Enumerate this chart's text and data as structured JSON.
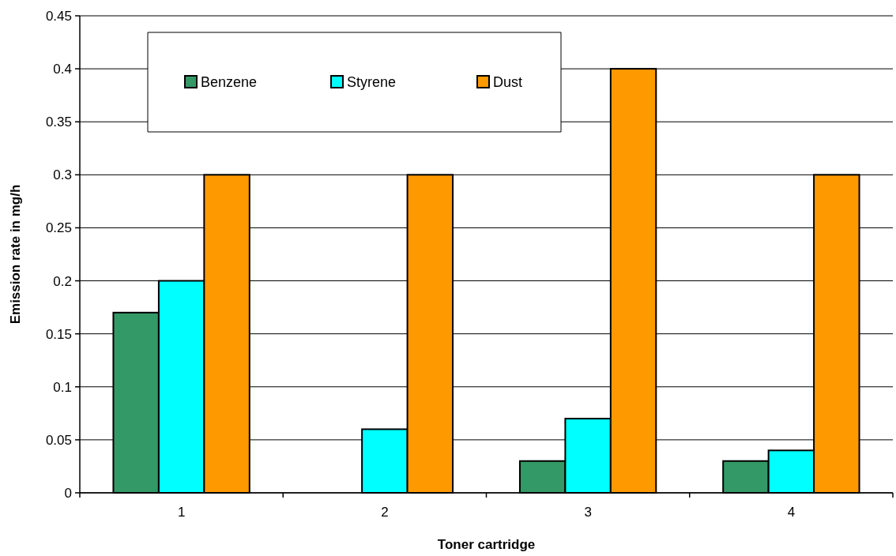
{
  "chart_data": {
    "type": "bar",
    "xlabel": "Toner cartridge",
    "ylabel": "Emission rate in mg/h",
    "categories": [
      "1",
      "2",
      "3",
      "4"
    ],
    "series": [
      {
        "name": "Benzene",
        "color": "#339966",
        "values": [
          0.17,
          null,
          0.03,
          0.03
        ]
      },
      {
        "name": "Styrene",
        "color": "#00ffff",
        "values": [
          0.2,
          0.06,
          0.07,
          0.04
        ]
      },
      {
        "name": "Dust",
        "color": "#ff9900",
        "values": [
          0.3,
          0.3,
          0.4,
          0.3
        ]
      }
    ],
    "ylim": [
      0,
      0.45
    ],
    "yticks": [
      0,
      0.05,
      0.1,
      0.15,
      0.2,
      0.25,
      0.3,
      0.35,
      0.4,
      0.45
    ],
    "grid": "y",
    "legend": "top left"
  }
}
